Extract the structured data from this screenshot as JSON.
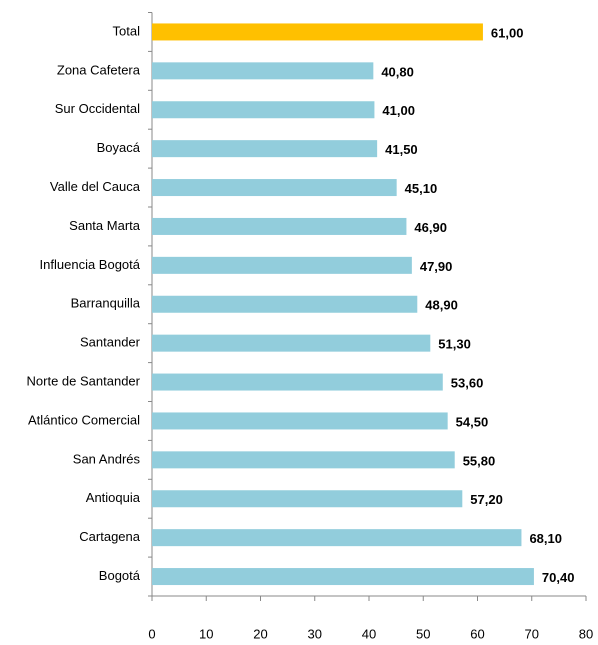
{
  "chart_data": {
    "type": "bar",
    "orientation": "horizontal",
    "categories": [
      "Total",
      "Zona Cafetera",
      "Sur Occidental",
      "Boyacá",
      "Valle del Cauca",
      "Santa Marta",
      "Influencia Bogotá",
      "Barranquilla",
      "Santander",
      "Norte de Santander",
      "Atlántico Comercial",
      "San Andrés",
      "Antioquia",
      "Cartagena",
      "Bogotá"
    ],
    "values": [
      61.0,
      40.8,
      41.0,
      41.5,
      45.1,
      46.9,
      47.9,
      48.9,
      51.3,
      53.6,
      54.5,
      55.8,
      57.2,
      68.1,
      70.4
    ],
    "value_labels": [
      "61,00",
      "40,80",
      "41,00",
      "41,50",
      "45,10",
      "46,90",
      "47,90",
      "48,90",
      "51,30",
      "53,60",
      "54,50",
      "55,80",
      "57,20",
      "68,10",
      "70,40"
    ],
    "colors": [
      "#FFC000",
      "#92CDDC",
      "#92CDDC",
      "#92CDDC",
      "#92CDDC",
      "#92CDDC",
      "#92CDDC",
      "#92CDDC",
      "#92CDDC",
      "#92CDDC",
      "#92CDDC",
      "#92CDDC",
      "#92CDDC",
      "#92CDDC",
      "#92CDDC"
    ],
    "xlim": [
      0,
      80
    ],
    "xticks": [
      0,
      10,
      20,
      30,
      40,
      50,
      60,
      70,
      80
    ]
  }
}
